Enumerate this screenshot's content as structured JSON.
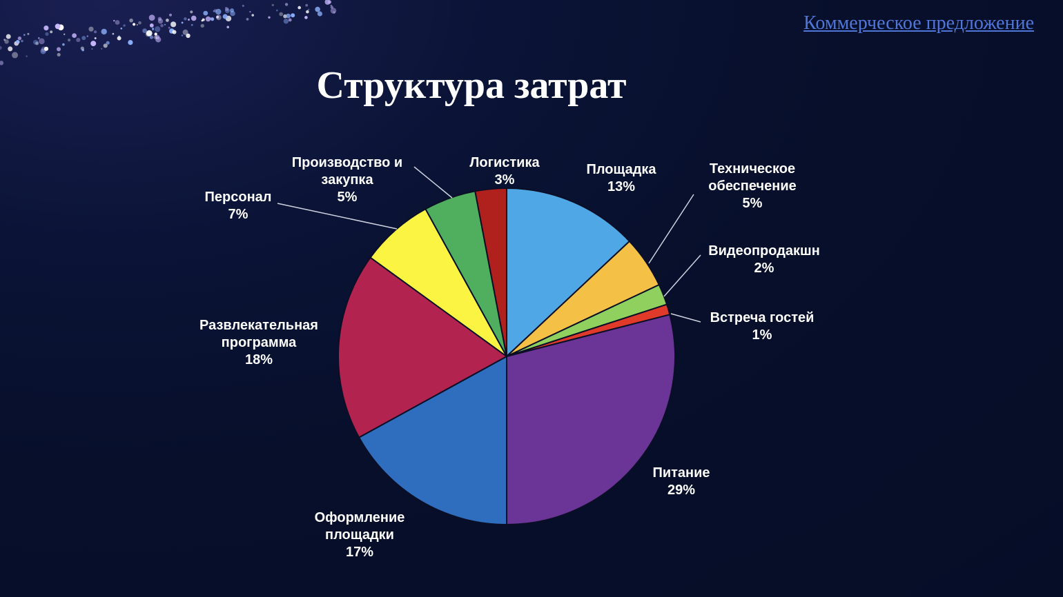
{
  "header": {
    "link_text": "Коммерческое предложение"
  },
  "page": {
    "title": "Структура затрат"
  },
  "colors": {
    "background": "#070f2b",
    "link": "#4f77d9"
  },
  "chart_data": {
    "type": "pie",
    "title": "Структура затрат",
    "start_angle_deg": 0,
    "direction": "clockwise",
    "slices": [
      {
        "label": "Площадка",
        "value": 13,
        "value_label": "13%",
        "color": "#4fa7e6"
      },
      {
        "label": "Техническое обеспечение",
        "value": 5,
        "value_label": "5%",
        "color": "#f5c046"
      },
      {
        "label": "Видеопродакшн",
        "value": 2,
        "value_label": "2%",
        "color": "#8fd05f"
      },
      {
        "label": "Встреча гостей",
        "value": 1,
        "value_label": "1%",
        "color": "#e03a2b"
      },
      {
        "label": "Питание",
        "value": 29,
        "value_label": "29%",
        "color": "#6a3597"
      },
      {
        "label": "Оформление площадки",
        "value": 17,
        "value_label": "17%",
        "color": "#2f6dbf"
      },
      {
        "label": "Развлекательная программа",
        "value": 18,
        "value_label": "18%",
        "color": "#b32350"
      },
      {
        "label": "Персонал",
        "value": 7,
        "value_label": "7%",
        "color": "#fbf443"
      },
      {
        "label": "Производство и закупка",
        "value": 5,
        "value_label": "5%",
        "color": "#4faf5e"
      },
      {
        "label": "Логистика",
        "value": 3,
        "value_label": "3%",
        "color": "#b0211e"
      }
    ],
    "label_lines": [
      [
        "Площадка",
        "13%"
      ],
      [
        "Техническое",
        "обеспечение",
        "5%"
      ],
      [
        "Видеопродакшн",
        "2%"
      ],
      [
        "Встреча гостей",
        "1%"
      ],
      [
        "Питание",
        "29%"
      ],
      [
        "Оформление",
        "площадки",
        "17%"
      ],
      [
        "Развлекательная",
        "программа",
        "18%"
      ],
      [
        "Персонал",
        "7%"
      ],
      [
        "Производство и",
        "закупка",
        "5%"
      ],
      [
        "Логистика",
        "3%"
      ]
    ]
  }
}
